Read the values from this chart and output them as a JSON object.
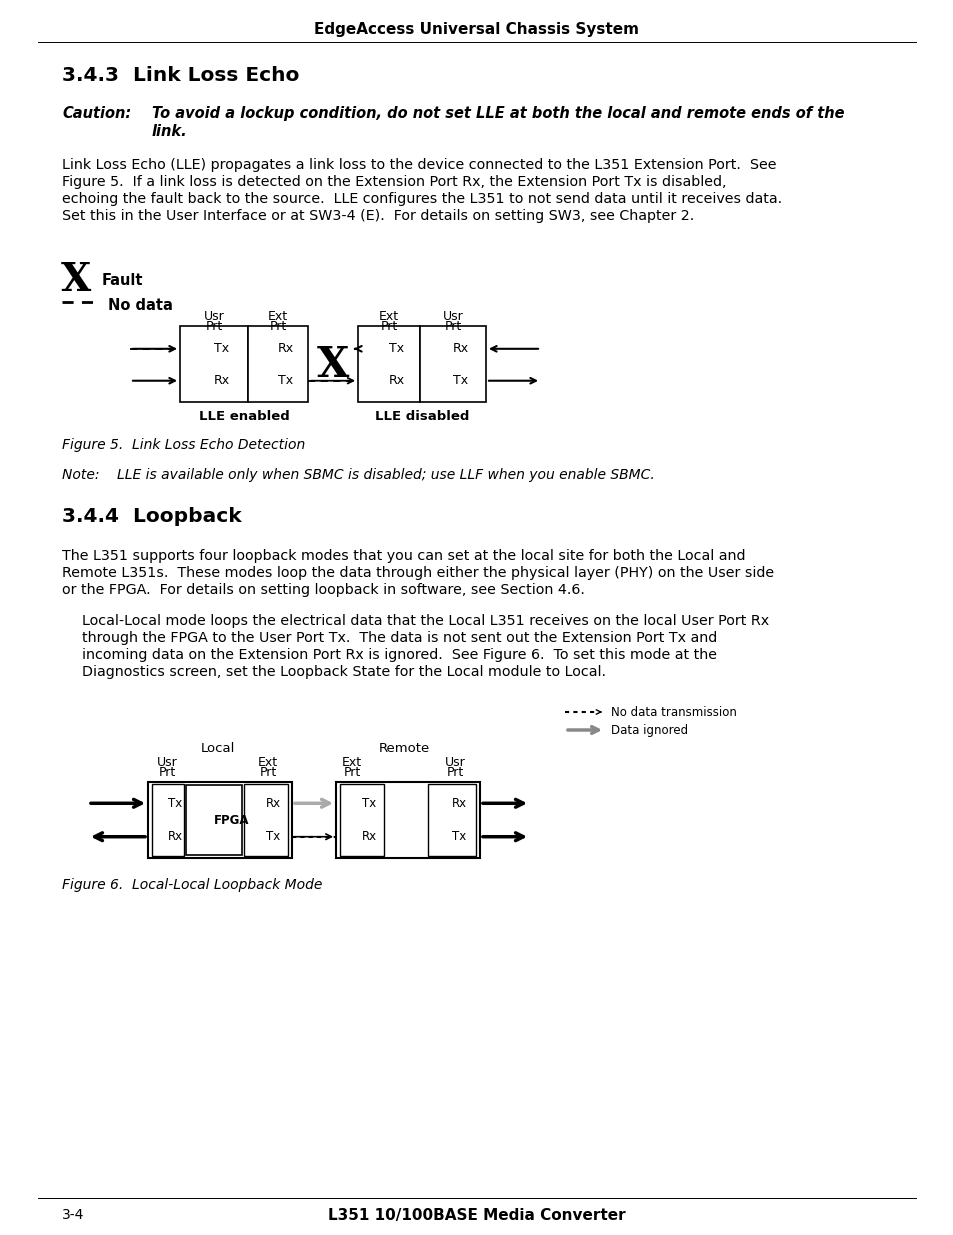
{
  "header": "EdgeAccess Universal Chassis System",
  "section1_title": "3.4.3  Link Loss Echo",
  "caution_label": "Caution:",
  "caution_text1": "To avoid a lockup condition, do not set LLE at both the local and remote ends of the",
  "caution_text2": "link.",
  "body1_l1": "Link Loss Echo (LLE) propagates a link loss to the device connected to the L351 Extension Port.  See",
  "body1_l2": "Figure 5.  If a link loss is detected on the Extension Port Rx, the Extension Port Tx is disabled,",
  "body1_l3": "echoing the fault back to the source.  LLE configures the L351 to not send data until it receives data.",
  "body1_l4": "Set this in the User Interface or at SW3-4 (E).  For details on setting SW3, see Chapter 2.",
  "legend_fault": "Fault",
  "legend_nodata": "No data",
  "fig5_lle_enabled": "LLE enabled",
  "fig5_lle_disabled": "LLE disabled",
  "fig5_caption": "Figure 5.  Link Loss Echo Detection",
  "note_text": "Note:    LLE is available only when SBMC is disabled; use LLF when you enable SBMC.",
  "section2_title": "3.4.4  Loopback",
  "body2_l1": "The L351 supports four loopback modes that you can set at the local site for both the Local and",
  "body2_l2": "Remote L351s.  These modes loop the data through either the physical layer (PHY) on the User side",
  "body2_l3": "or the FPGA.  For details on setting loopback in software, see Section 4.6.",
  "body3_l1": "Local-Local mode loops the electrical data that the Local L351 receives on the local User Port Rx",
  "body3_l2": "through the FPGA to the User Port Tx.  The data is not sent out the Extension Port Tx and",
  "body3_l3": "incoming data on the Extension Port Rx is ignored.  See Figure 6.  To set this mode at the",
  "body3_l4": "Diagnostics screen, set the Loopback State for the Local module to Local.",
  "fig6_local": "Local",
  "fig6_remote": "Remote",
  "fig6_nodata": "No data transmission",
  "fig6_dataignored": "Data ignored",
  "fig6_caption": "Figure 6.  Local-Local Loopback Mode",
  "footer_left": "3-4",
  "footer_center": "L351 10/100BASE Media Converter"
}
